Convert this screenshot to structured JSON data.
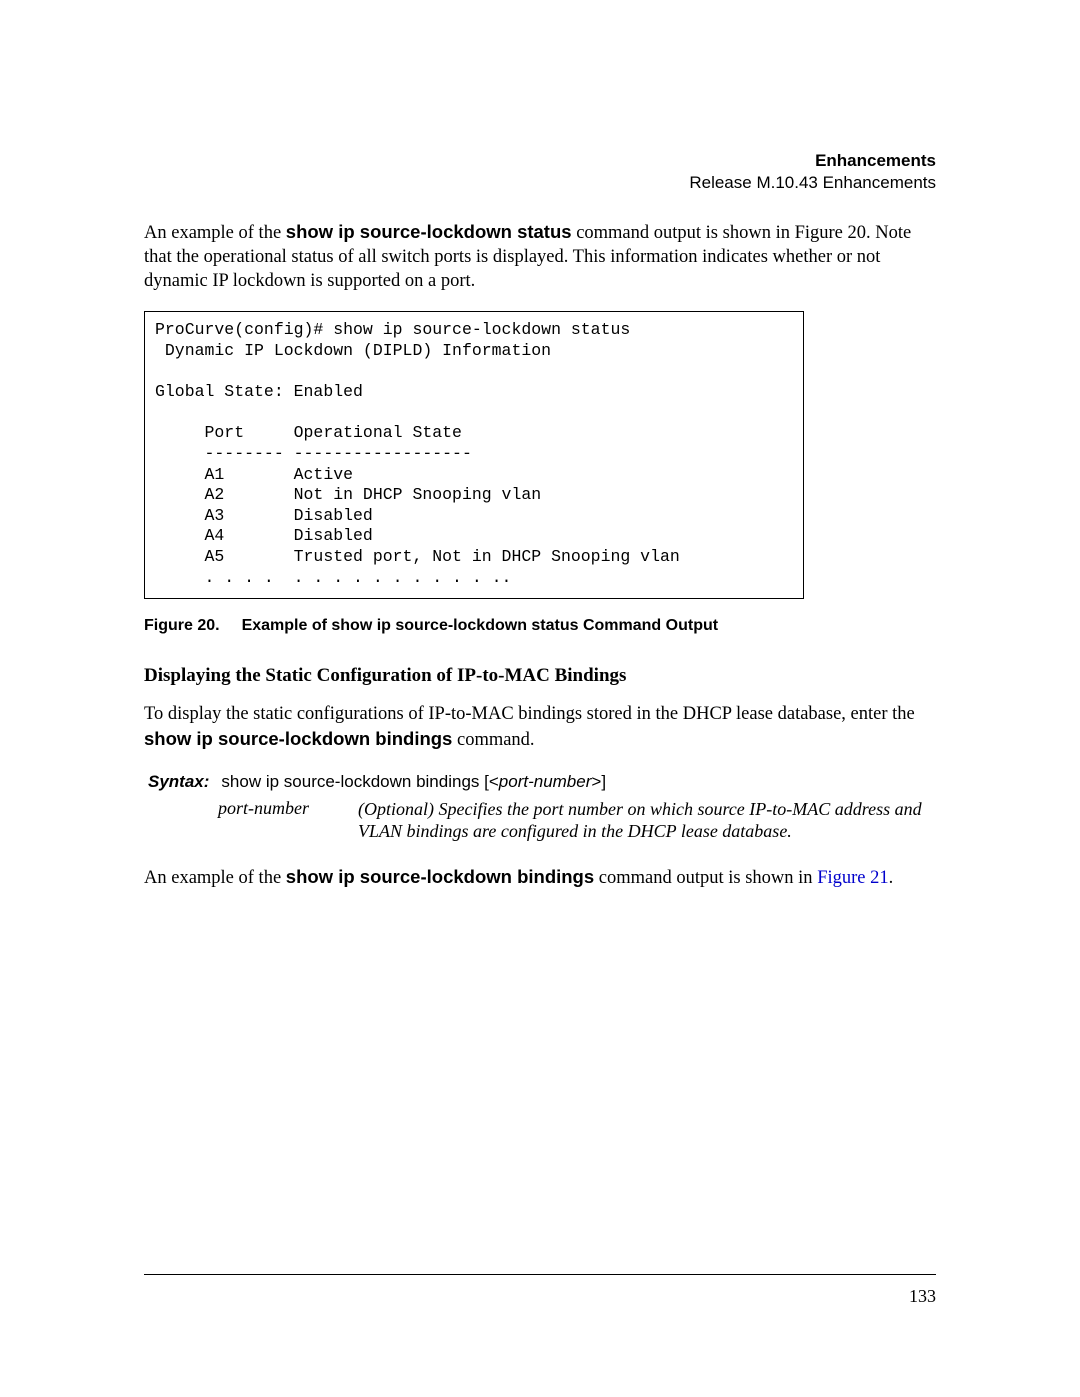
{
  "header": {
    "title": "Enhancements",
    "subtitle": "Release M.10.43 Enhancements"
  },
  "para1": {
    "pre": "An example of the ",
    "bold": "show ip source-lockdown status",
    "post": " command output is shown in Figure 20. Note that the operational status of all switch ports is displayed. This information indicates whether or not dynamic IP lockdown is supported on a port."
  },
  "codebox": {
    "lines": [
      "ProCurve(config)# show ip source-lockdown status",
      " Dynamic IP Lockdown (DIPLD) Information",
      "",
      "Global State: Enabled",
      "",
      "     Port     Operational State",
      "     -------- ------------------",
      "     A1       Active",
      "     A2       Not in DHCP Snooping vlan",
      "     A3       Disabled",
      "     A4       Disabled",
      "     A5       Trusted port, Not in DHCP Snooping vlan",
      "     . . . .  . . . . . . . . . . .."
    ]
  },
  "figure": {
    "num": "Figure 20.",
    "caption": "Example of show ip source-lockdown status Command Output"
  },
  "subheading": "Displaying the Static Configuration of IP-to-MAC Bindings",
  "para2": {
    "pre": "To display the static configurations of IP-to-MAC bindings stored in the DHCP lease database, enter the ",
    "bold": "show ip source-lockdown bindings",
    "post": " command."
  },
  "syntax": {
    "label": "Syntax:",
    "cmd_pre": "show ip source-lockdown bindings [<",
    "cmd_param": "port-number",
    "cmd_post": ">]",
    "desc_key": "port-number",
    "desc_val": "(Optional) Specifies the port number on which source IP-to-MAC address and VLAN bindings are configured in the DHCP lease database."
  },
  "para3": {
    "pre": "An example of the ",
    "bold": "show ip source-lockdown bindings",
    "mid": " command output is shown in ",
    "link": "Figure 21",
    "post": "."
  },
  "page_number": "133"
}
